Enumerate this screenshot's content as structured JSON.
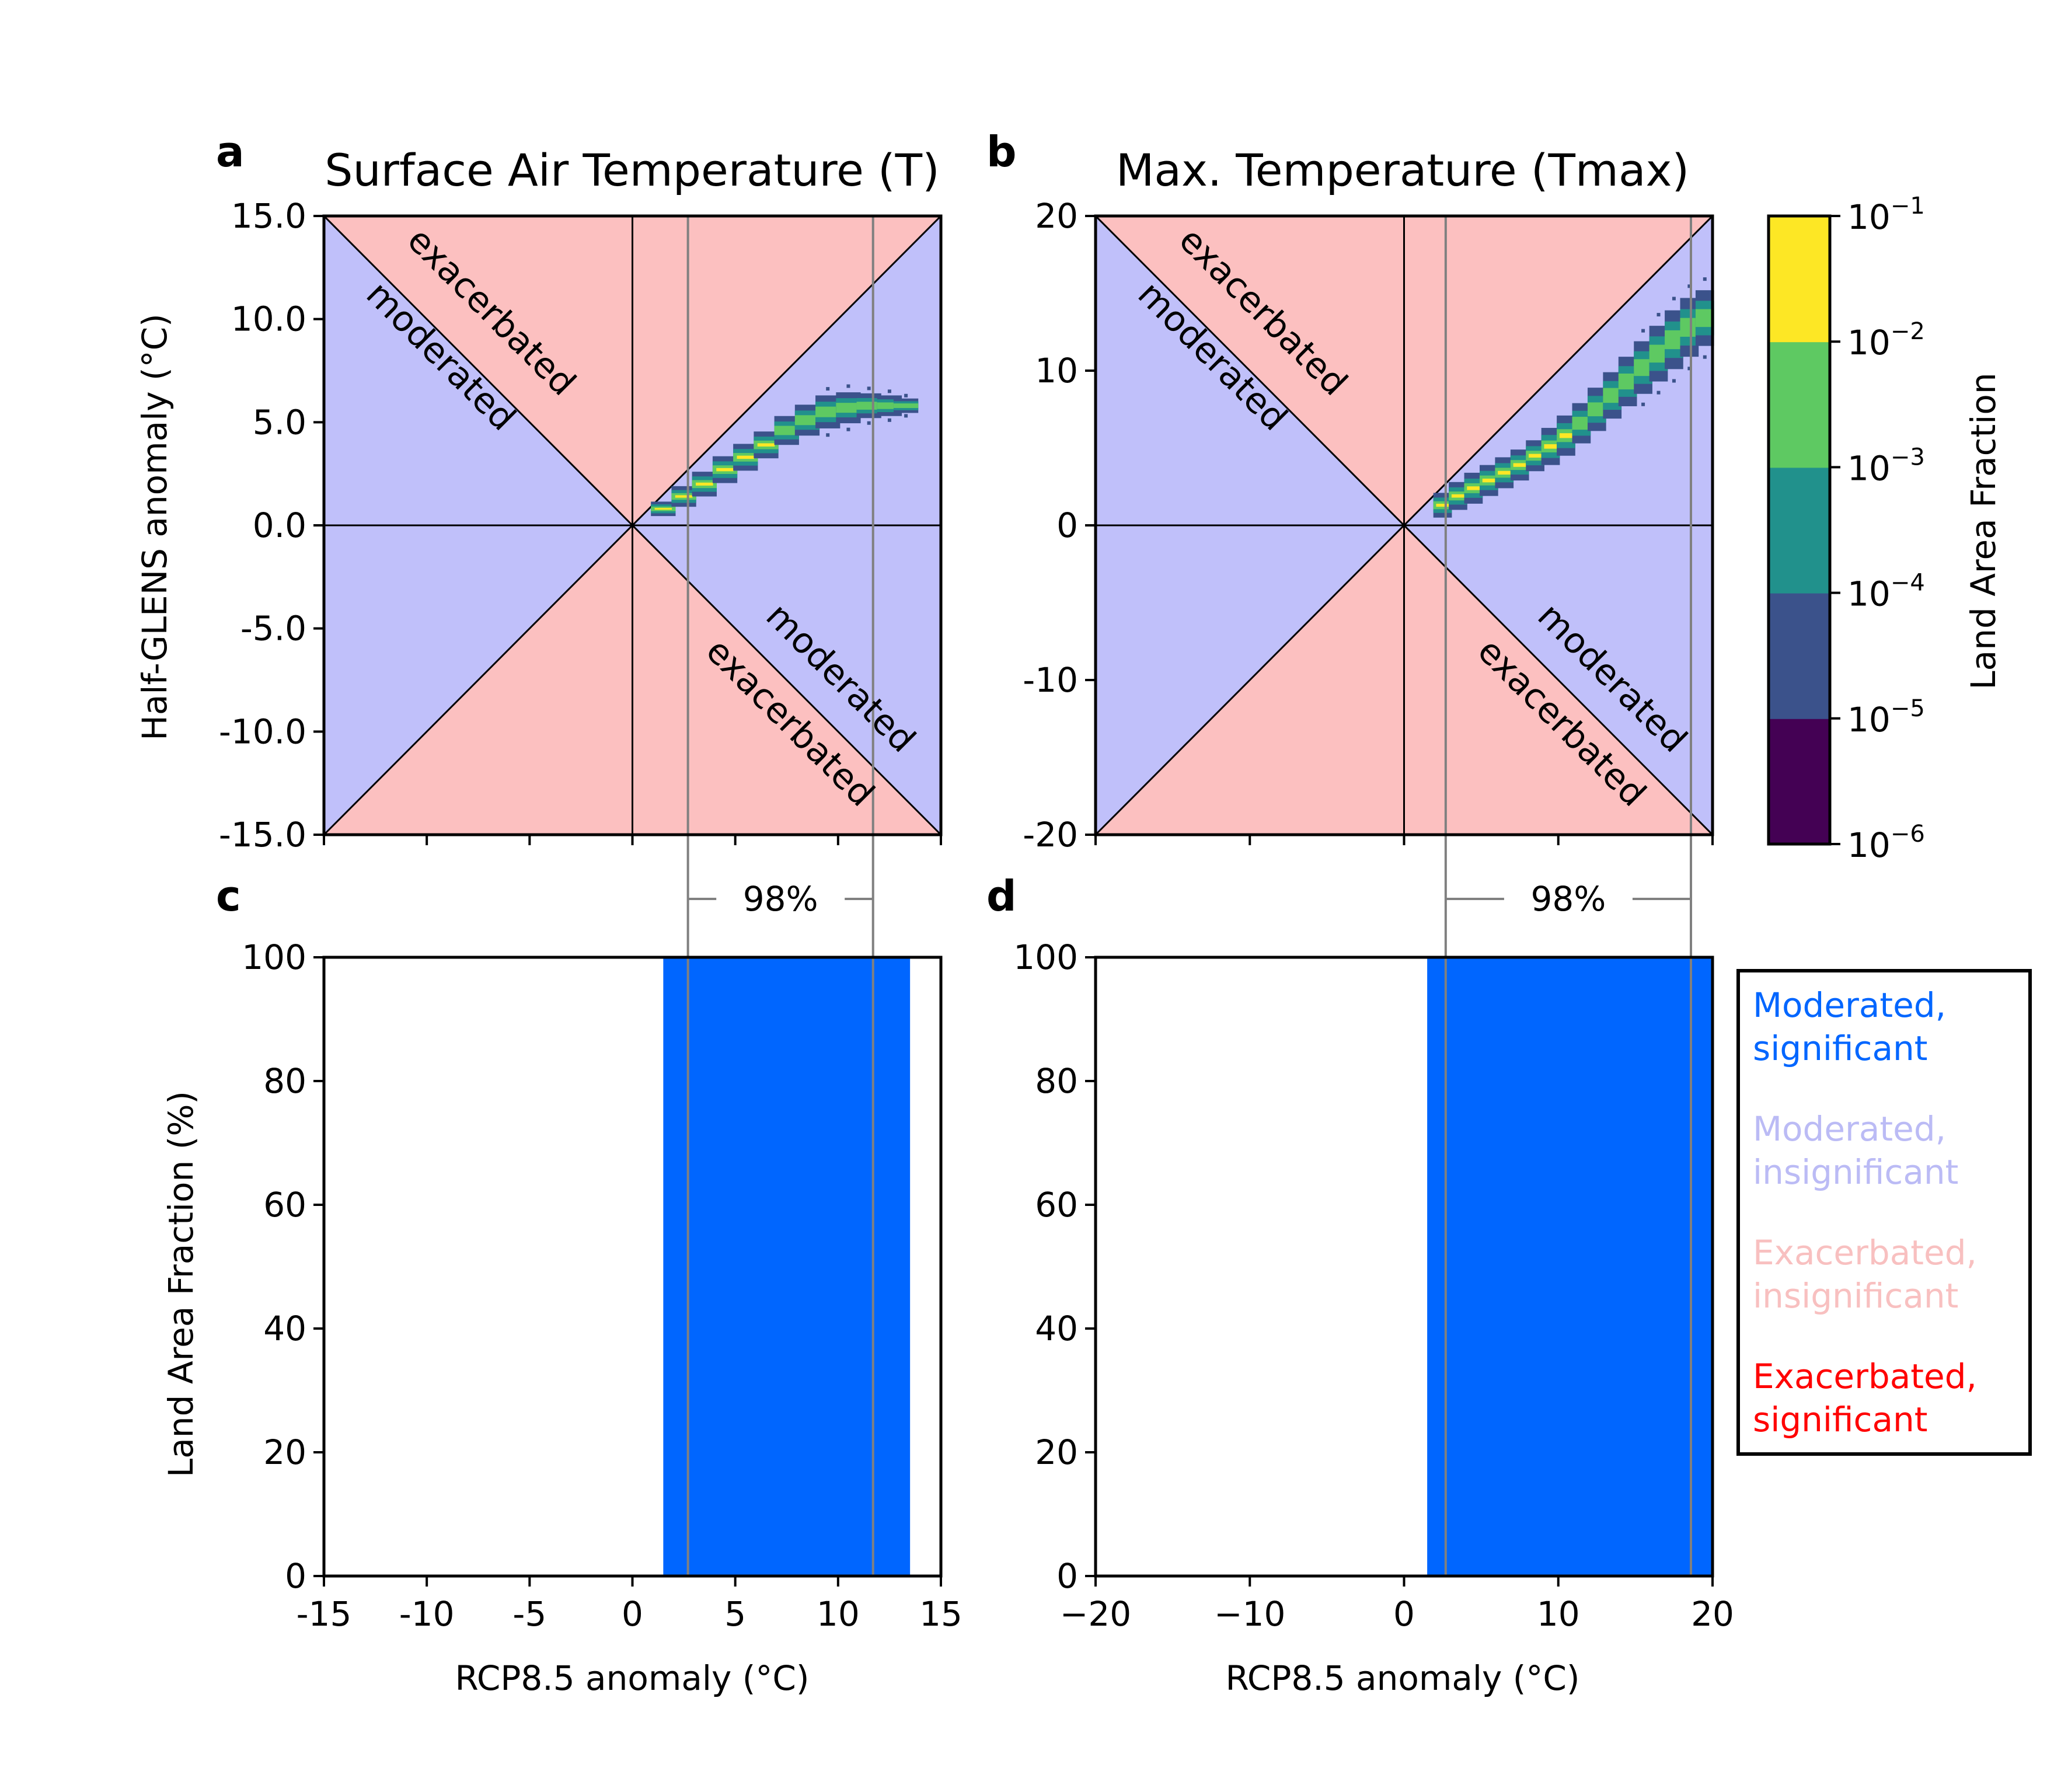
{
  "colors": {
    "moderated_region": "#c0c0fa",
    "exacerbated_region": "#fcc0c0",
    "significant_moderated": "#0066ff",
    "insignificant_moderated": "#bbbbf5",
    "insignificant_exacerbated": "#f8c0c0",
    "significant_exacerbated": "#ff0000",
    "percentile_line": "#808080",
    "viridis": [
      "#440154",
      "#3b528b",
      "#21918c",
      "#5ec962",
      "#fde725"
    ]
  },
  "colorbar": {
    "label": "Land Area Fraction",
    "ticks": [
      {
        "base": "10",
        "exp": "−1"
      },
      {
        "base": "10",
        "exp": "−2"
      },
      {
        "base": "10",
        "exp": "−3"
      },
      {
        "base": "10",
        "exp": "−4"
      },
      {
        "base": "10",
        "exp": "−5"
      },
      {
        "base": "10",
        "exp": "−6"
      }
    ]
  },
  "legend": {
    "items": [
      {
        "line1": "Moderated,",
        "line2": "significant",
        "color": "#0066ff"
      },
      {
        "line1": "Moderated,",
        "line2": "insignificant",
        "color": "#bbbbf5"
      },
      {
        "line1": "Exacerbated,",
        "line2": "insignificant",
        "color": "#f8c0c0"
      },
      {
        "line1": "Exacerbated,",
        "line2": "significant",
        "color": "#ff0000"
      }
    ]
  },
  "chart_data": [
    {
      "panel": "a",
      "type": "heatmap",
      "title": "Surface Air Temperature (T)",
      "ylabel": "Half-GLENS anomaly (°C)",
      "xlim": [
        -15,
        15
      ],
      "ylim": [
        -15,
        15
      ],
      "yticks": [
        "15.0",
        "10.0",
        "5.0",
        "0.0",
        "-5.0",
        "-10.0",
        "-15.0"
      ],
      "ytick_values": [
        15,
        10,
        5,
        0,
        -5,
        -10,
        -15
      ],
      "xtick_values": [
        -15,
        -10,
        -5,
        0,
        5,
        10,
        15
      ],
      "region_labels": {
        "upper_exacerbated": "exacerbated",
        "upper_moderated": "moderated",
        "lower_moderated": "moderated",
        "lower_exacerbated": "exacerbated"
      },
      "percentile_lines_x": [
        2.7,
        11.7
      ],
      "percentile_label": "98%",
      "density_ridge": [
        {
          "x": 1.5,
          "y": 0.8,
          "w": 0.35
        },
        {
          "x": 2.5,
          "y": 1.4,
          "w": 0.5
        },
        {
          "x": 3.5,
          "y": 2.0,
          "w": 0.6
        },
        {
          "x": 4.5,
          "y": 2.7,
          "w": 0.65
        },
        {
          "x": 5.5,
          "y": 3.3,
          "w": 0.65
        },
        {
          "x": 6.5,
          "y": 3.9,
          "w": 0.65
        },
        {
          "x": 7.5,
          "y": 4.6,
          "w": 0.7
        },
        {
          "x": 8.5,
          "y": 5.1,
          "w": 0.75
        },
        {
          "x": 9.5,
          "y": 5.5,
          "w": 0.8
        },
        {
          "x": 10.5,
          "y": 5.7,
          "w": 0.75
        },
        {
          "x": 11.5,
          "y": 5.8,
          "w": 0.6
        },
        {
          "x": 12.5,
          "y": 5.8,
          "w": 0.5
        },
        {
          "x": 13.3,
          "y": 5.8,
          "w": 0.35
        }
      ]
    },
    {
      "panel": "b",
      "type": "heatmap",
      "title": "Max. Temperature (Tmax)",
      "ylabel": "",
      "xlim": [
        -20,
        20
      ],
      "ylim": [
        -20,
        20
      ],
      "yticks": [
        "20",
        "10",
        "0",
        "-10",
        "-20"
      ],
      "ytick_values": [
        20,
        10,
        0,
        -10,
        -20
      ],
      "xtick_values": [
        -20,
        -10,
        0,
        10,
        20
      ],
      "region_labels": {
        "upper_exacerbated": "exacerbated",
        "upper_moderated": "moderated",
        "lower_moderated": "moderated",
        "lower_exacerbated": "exacerbated"
      },
      "percentile_lines_x": [
        2.7,
        18.6
      ],
      "percentile_label": "98%",
      "density_ridge": [
        {
          "x": 2.5,
          "y": 1.3,
          "w": 0.8
        },
        {
          "x": 3.5,
          "y": 1.9,
          "w": 0.9
        },
        {
          "x": 4.5,
          "y": 2.4,
          "w": 1.0
        },
        {
          "x": 5.5,
          "y": 2.9,
          "w": 1.0
        },
        {
          "x": 6.5,
          "y": 3.4,
          "w": 1.0
        },
        {
          "x": 7.5,
          "y": 3.9,
          "w": 1.0
        },
        {
          "x": 8.5,
          "y": 4.5,
          "w": 1.0
        },
        {
          "x": 9.5,
          "y": 5.1,
          "w": 1.2
        },
        {
          "x": 10.5,
          "y": 5.8,
          "w": 1.3
        },
        {
          "x": 11.5,
          "y": 6.6,
          "w": 1.3
        },
        {
          "x": 12.5,
          "y": 7.5,
          "w": 1.4
        },
        {
          "x": 13.5,
          "y": 8.4,
          "w": 1.5
        },
        {
          "x": 14.5,
          "y": 9.3,
          "w": 1.6
        },
        {
          "x": 15.5,
          "y": 10.2,
          "w": 1.7
        },
        {
          "x": 16.5,
          "y": 11.1,
          "w": 1.8
        },
        {
          "x": 17.5,
          "y": 12.0,
          "w": 1.9
        },
        {
          "x": 18.5,
          "y": 12.8,
          "w": 1.9
        },
        {
          "x": 19.5,
          "y": 13.4,
          "w": 1.8
        }
      ]
    },
    {
      "panel": "c",
      "type": "area",
      "xlabel": "RCP8.5 anomaly (°C)",
      "ylabel": "Land Area Fraction (%)",
      "xlim": [
        -15,
        15
      ],
      "ylim": [
        0,
        100
      ],
      "xticks": [
        "-15",
        "-10",
        "-5",
        "0",
        "5",
        "10",
        "15"
      ],
      "xtick_values": [
        -15,
        -10,
        -5,
        0,
        5,
        10,
        15
      ],
      "yticks": [
        "0",
        "20",
        "40",
        "60",
        "80",
        "100"
      ],
      "ytick_values": [
        0,
        20,
        40,
        60,
        80,
        100
      ],
      "percentile_lines_x": [
        2.7,
        11.7
      ],
      "series": [
        {
          "name": "Moderated, significant",
          "x_range": [
            1.5,
            13.5
          ],
          "value": 100,
          "color": "#0066ff"
        }
      ]
    },
    {
      "panel": "d",
      "type": "area",
      "xlabel": "RCP8.5 anomaly (°C)",
      "ylabel": "",
      "xlim": [
        -20,
        20
      ],
      "ylim": [
        0,
        100
      ],
      "xticks": [
        "−20",
        "−10",
        "0",
        "10",
        "20"
      ],
      "xtick_values": [
        -20,
        -10,
        0,
        10,
        20
      ],
      "yticks": [
        "0",
        "20",
        "40",
        "60",
        "80",
        "100"
      ],
      "ytick_values": [
        0,
        20,
        40,
        60,
        80,
        100
      ],
      "percentile_lines_x": [
        2.7,
        18.6
      ],
      "series": [
        {
          "name": "Moderated, significant",
          "x_range": [
            1.5,
            20
          ],
          "value": 100,
          "color": "#0066ff"
        }
      ]
    }
  ]
}
